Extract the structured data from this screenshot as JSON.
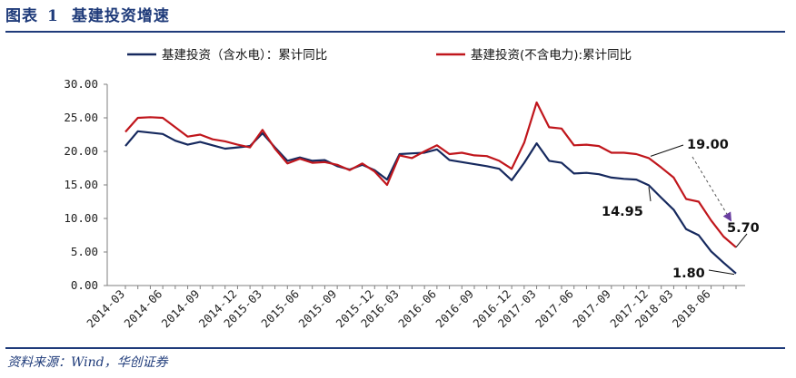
{
  "figure": {
    "label": "图表",
    "number": "1",
    "title": "基建投资增速",
    "source": "资料来源：Wind，华创证券"
  },
  "chart_data": {
    "type": "line",
    "title": "基建投资增速",
    "ylim": [
      0,
      30
    ],
    "yticks": [
      "0.00",
      "5.00",
      "10.00",
      "15.00",
      "20.00",
      "25.00",
      "30.00"
    ],
    "xtick_labels": [
      "2014-03",
      "2014-06",
      "2014-09",
      "2014-12",
      "2015-03",
      "2015-06",
      "2015-09",
      "2015-12",
      "2016-03",
      "2016-06",
      "2016-09",
      "2016-12",
      "2017-03",
      "2017-06",
      "2017-09",
      "2017-12",
      "2018-03",
      "2018-06"
    ],
    "x": [
      "2014-03",
      "2014-04",
      "2014-05",
      "2014-06",
      "2014-07",
      "2014-08",
      "2014-09",
      "2014-10",
      "2014-11",
      "2014-12",
      "2015-02",
      "2015-03",
      "2015-04",
      "2015-05",
      "2015-06",
      "2015-07",
      "2015-08",
      "2015-09",
      "2015-10",
      "2015-11",
      "2015-12",
      "2016-02",
      "2016-03",
      "2016-04",
      "2016-05",
      "2016-06",
      "2016-07",
      "2016-08",
      "2016-09",
      "2016-10",
      "2016-11",
      "2016-12",
      "2017-02",
      "2017-03",
      "2017-04",
      "2017-05",
      "2017-06",
      "2017-07",
      "2017-08",
      "2017-09",
      "2017-10",
      "2017-11",
      "2017-12",
      "2018-02",
      "2018-03",
      "2018-04",
      "2018-05",
      "2018-06",
      "2018-07",
      "2018-08"
    ],
    "series": [
      {
        "name": "基建投资（含水电）：累计同比",
        "color": "#16295e",
        "values": [
          20.8,
          23.0,
          22.8,
          22.6,
          21.6,
          21.0,
          21.4,
          20.9,
          20.4,
          20.6,
          20.8,
          22.7,
          20.6,
          18.6,
          19.1,
          18.6,
          18.7,
          17.8,
          17.3,
          18.0,
          17.2,
          15.8,
          19.6,
          19.7,
          19.8,
          20.3,
          18.7,
          18.4,
          18.1,
          17.8,
          17.4,
          15.7,
          18.3,
          21.2,
          18.6,
          18.3,
          16.7,
          16.8,
          16.6,
          16.1,
          15.9,
          15.8,
          14.95,
          13.1,
          11.3,
          8.4,
          7.5,
          5.1,
          3.4,
          1.8
        ]
      },
      {
        "name": "基建投资(不含电力):累计同比",
        "color": "#c0161c",
        "values": [
          22.9,
          25.0,
          25.1,
          25.0,
          23.6,
          22.2,
          22.5,
          21.8,
          21.5,
          21.0,
          20.6,
          23.2,
          20.4,
          18.2,
          18.9,
          18.3,
          18.4,
          18.0,
          17.2,
          18.2,
          17.0,
          15.0,
          19.4,
          19.0,
          20.0,
          20.9,
          19.6,
          19.8,
          19.4,
          19.3,
          18.6,
          17.4,
          21.3,
          27.3,
          23.6,
          23.4,
          20.9,
          21.0,
          20.8,
          19.8,
          19.8,
          19.6,
          19.0,
          17.6,
          16.1,
          12.9,
          12.5,
          9.7,
          7.3,
          5.7
        ]
      }
    ],
    "annotations": [
      {
        "text": "19.00",
        "target": "2017-12"
      },
      {
        "text": "14.95",
        "target": "2017-12"
      },
      {
        "text": "5.70",
        "target": "2018-08"
      },
      {
        "text": "1.80",
        "target": "2018-08"
      }
    ]
  }
}
